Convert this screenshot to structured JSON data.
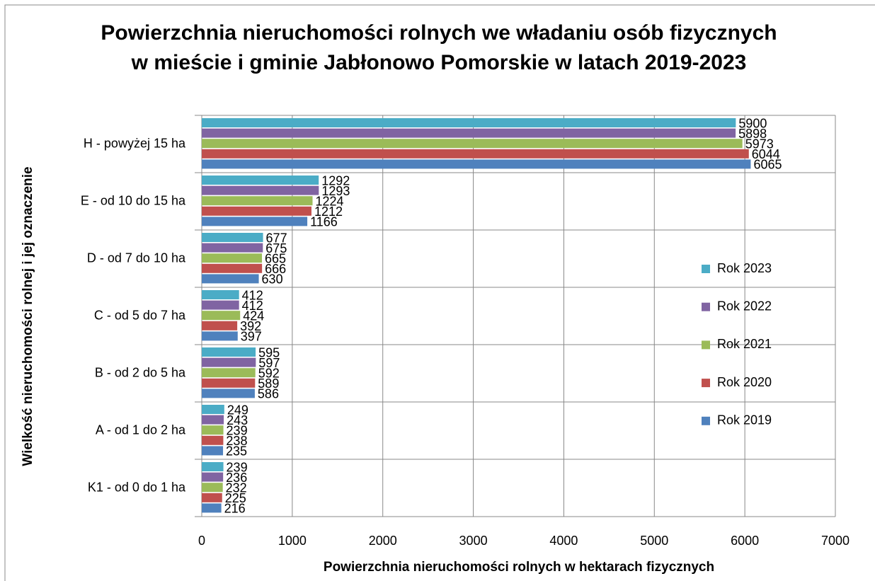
{
  "chart_data": {
    "type": "bar",
    "orientation": "horizontal",
    "title": "Powierzchnia nieruchomości rolnych we władaniu osób fizycznych w mieście i gminie Jabłonowo Pomorskie w latach 2019-2023",
    "x_label": "Powierzchnia nieruchomości rolnych w hektarach fizycznych",
    "y_label": "Wielkość nieruchomości rolnej i jej oznaczenie",
    "categories": [
      "H - powyżej 15 ha",
      "E - od 10 do 15 ha",
      "D - od 7 do 10 ha",
      "C - od 5 do 7 ha",
      "B - od 2 do 5 ha",
      "A - od 1 do 2 ha",
      "K1 - od 0 do 1 ha"
    ],
    "series": [
      {
        "name": "Rok 2023",
        "color": "#4bacc6",
        "values": [
          5900,
          1292,
          677,
          412,
          595,
          249,
          239
        ]
      },
      {
        "name": "Rok 2022",
        "color": "#8064a2",
        "values": [
          5898,
          1293,
          675,
          412,
          597,
          243,
          236
        ]
      },
      {
        "name": "Rok 2021",
        "color": "#9bbb59",
        "values": [
          5973,
          1224,
          665,
          424,
          592,
          239,
          232
        ]
      },
      {
        "name": "Rok 2020",
        "color": "#c0504d",
        "values": [
          6044,
          1212,
          666,
          392,
          589,
          238,
          225
        ]
      },
      {
        "name": "Rok 2019",
        "color": "#4f81bd",
        "values": [
          6065,
          1166,
          630,
          397,
          586,
          235,
          216
        ]
      }
    ],
    "xlim": [
      0,
      7000
    ],
    "xticks": [
      0,
      1000,
      2000,
      3000,
      4000,
      5000,
      6000,
      7000
    ],
    "grid": true,
    "legend": "right"
  }
}
